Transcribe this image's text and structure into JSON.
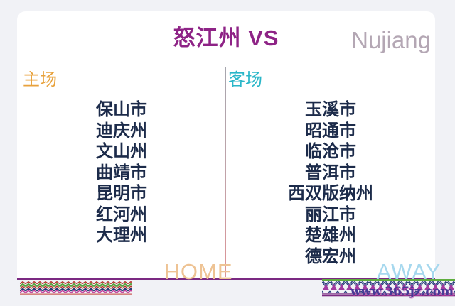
{
  "page": {
    "background_color": "#f1f2f6",
    "card_color": "#ffffff"
  },
  "header": {
    "title": "怒江州 VS",
    "title_color": "#8e2386",
    "team_name_en": "Nujiang",
    "team_name_en_color": "#b4a7b4"
  },
  "home_column": {
    "label": "主场",
    "label_color": "#e8a23c",
    "footer_label": "HOME",
    "footer_color": "#eec394",
    "items": [
      "保山市",
      "迪庆州",
      "文山州",
      "曲靖市",
      "昆明市",
      "红河州",
      "大理州"
    ]
  },
  "away_column": {
    "label": "客场",
    "label_color": "#29b6c8",
    "footer_label": "AWAY",
    "footer_color": "#a6d8ee",
    "items": [
      "玉溪市",
      "昭通市",
      "临沧市",
      "普洱市",
      "西双版纳州",
      "丽江市",
      "楚雄州",
      "德宏州"
    ]
  },
  "list_text_color": "#1c2b4a",
  "footer": {
    "site_watermark": "www.365jz.com",
    "site_watermark_color": "#473a96",
    "bottom_rule_color": "#7b2982"
  },
  "decorations": {
    "left_border": "ethnic-zigzag-pattern-left",
    "right_border": "ethnic-zigzag-pattern-right"
  }
}
